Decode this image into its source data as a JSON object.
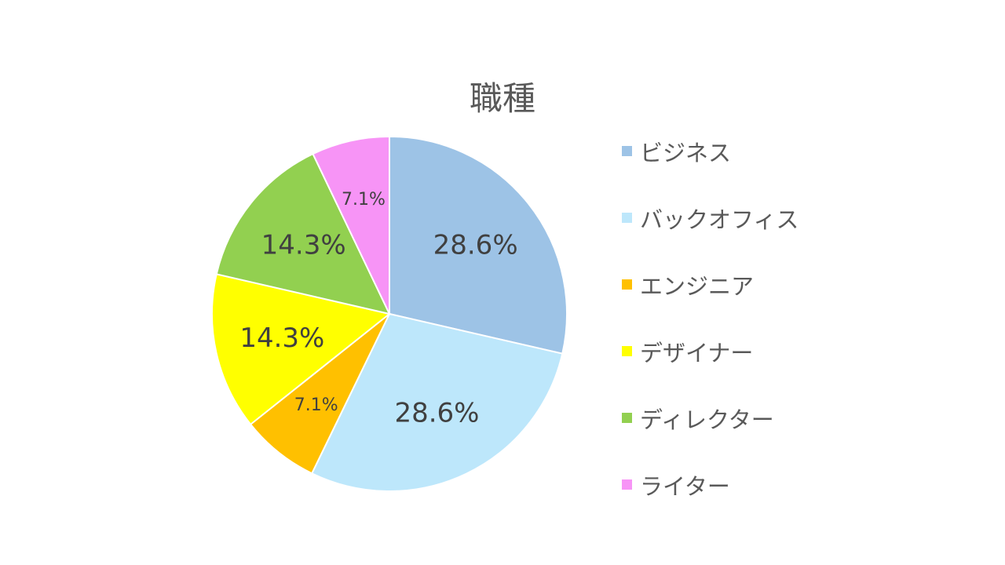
{
  "chart_data": {
    "type": "pie",
    "title": "職種",
    "categories": [
      "ビジネス",
      "バックオフィス",
      "エンジニア",
      "デザイナー",
      "ディレクター",
      "ライター"
    ],
    "values": [
      28.6,
      28.6,
      7.1,
      14.3,
      14.3,
      7.1
    ],
    "labels": [
      "28.6%",
      "28.6%",
      "7.1%",
      "14.3%",
      "14.3%",
      "7.1%"
    ],
    "colors": [
      "#9DC3E6",
      "#BDE7FB",
      "#FFC000",
      "#FFFF00",
      "#92D050",
      "#F794F6"
    ],
    "legend": "right",
    "start_angle": "12 o'clock",
    "direction": "clockwise"
  }
}
